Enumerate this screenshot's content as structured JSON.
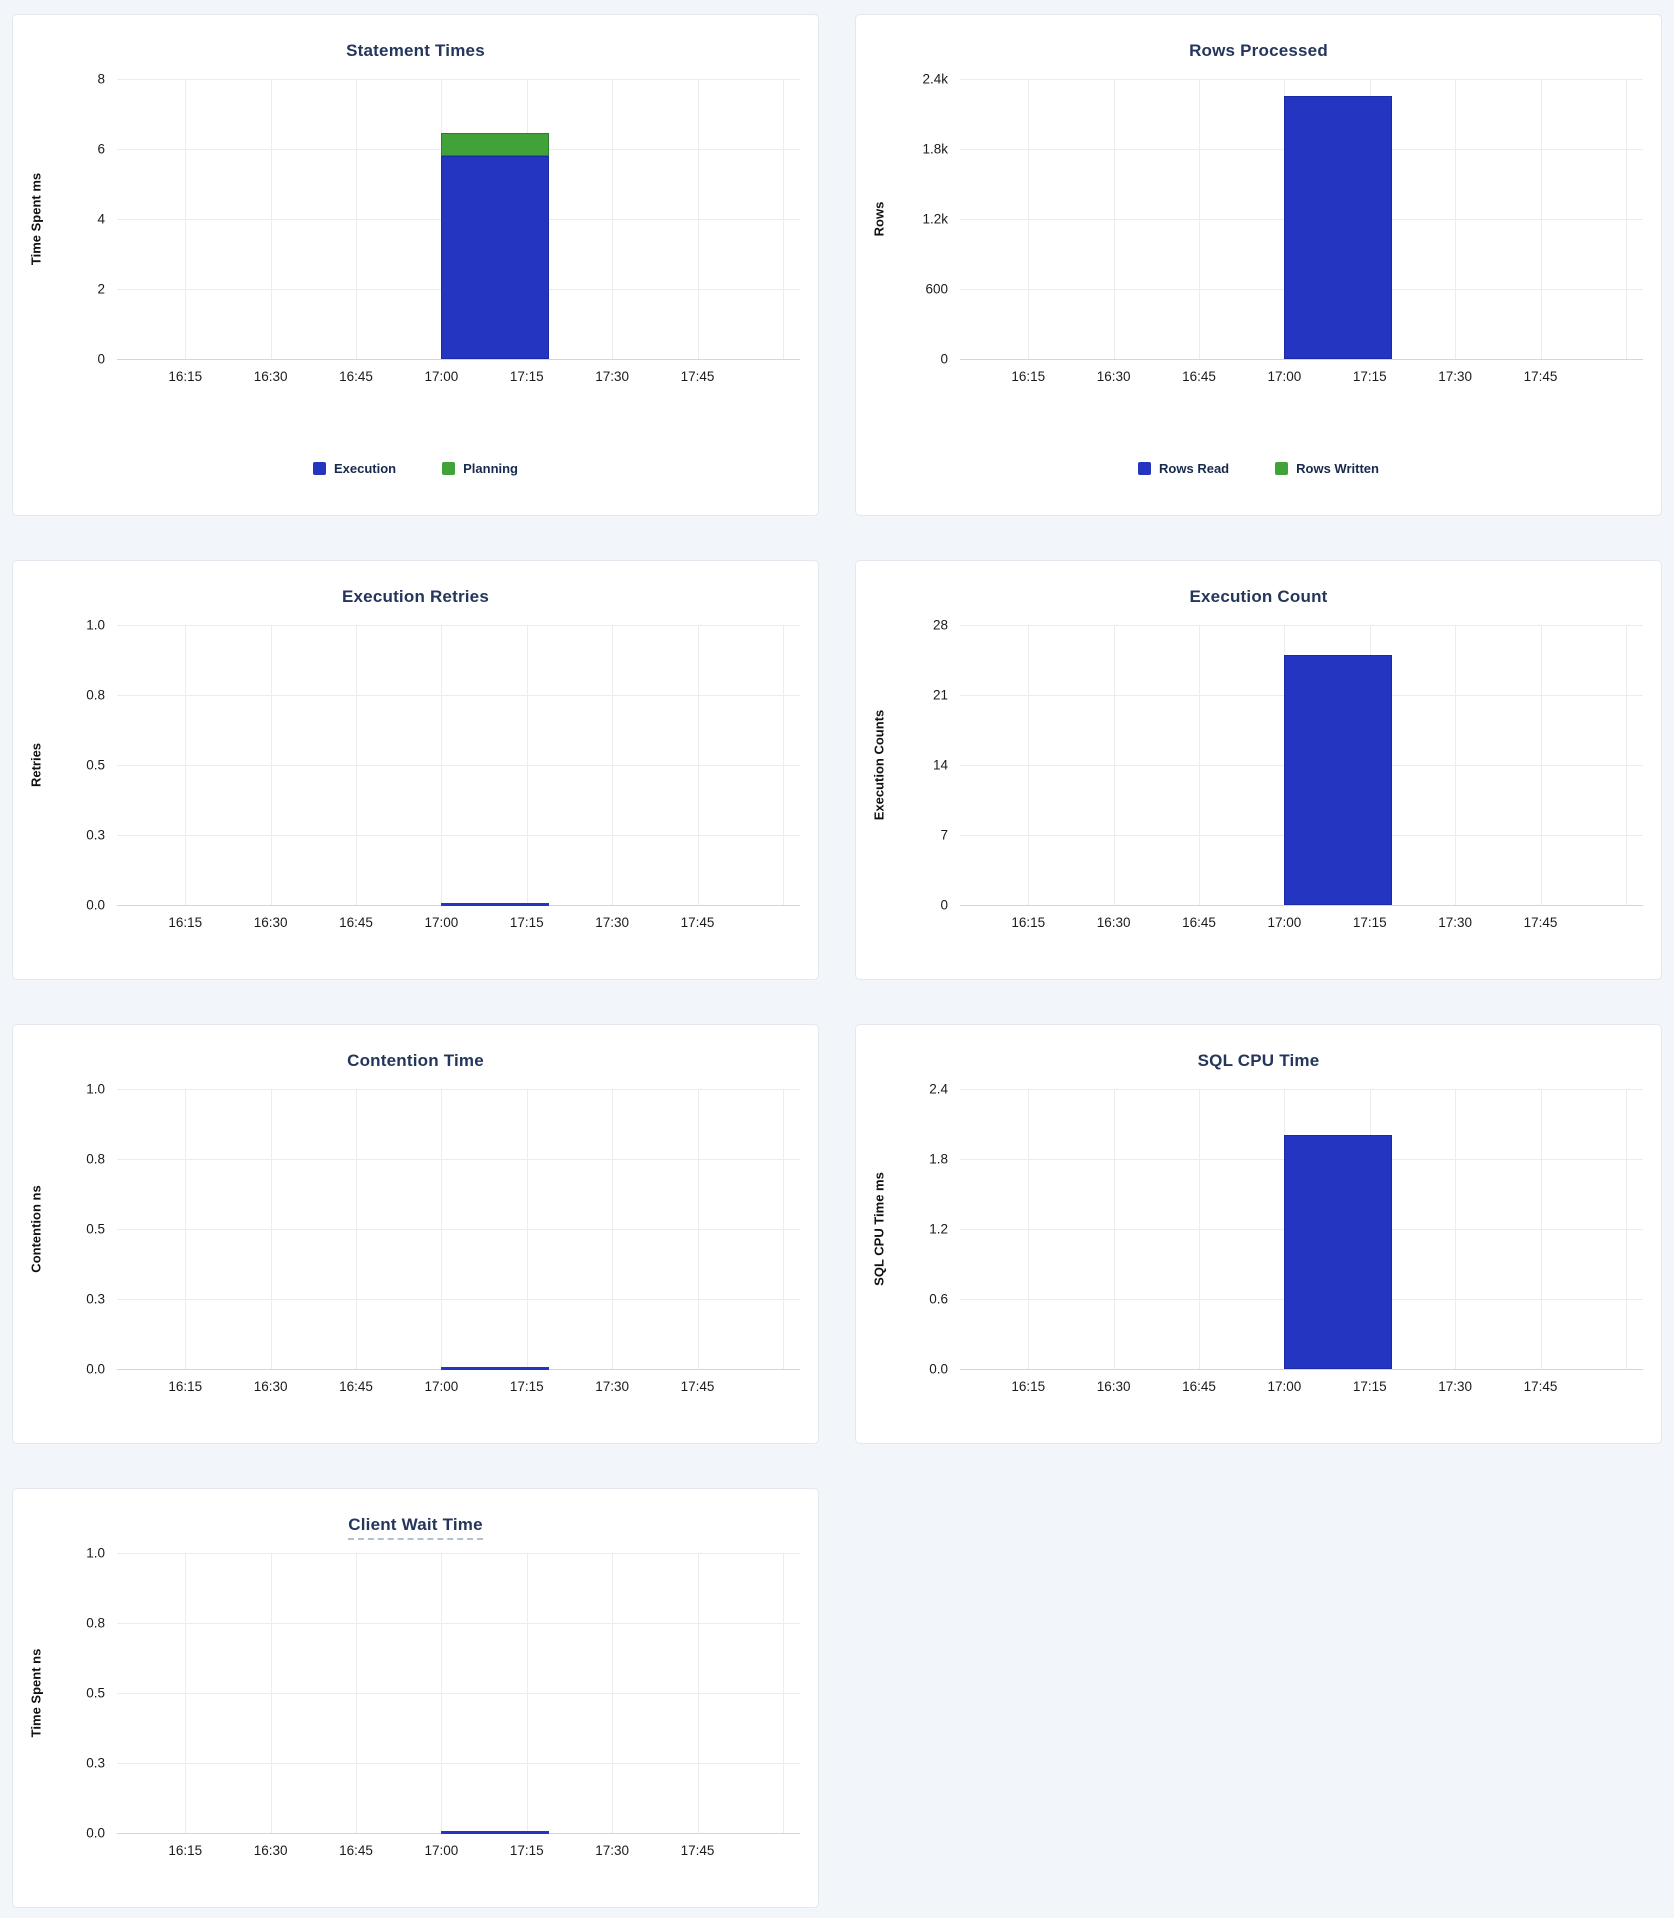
{
  "colors": {
    "bar_blue": "#2435c1",
    "bar_blue_border": "#1b2aa6",
    "bar_green": "#41a23a",
    "bar_green_border": "#27812a",
    "title_navy": "#24365c",
    "legend_text": "#17294d",
    "tick_text": "#1b1b1b",
    "grid_light": "#ececec",
    "axis_bottom_line": "#d3d7dc",
    "page_bg": "#f2f5f9",
    "card_bg": "#ffffff",
    "card_border": "#e3e8ee"
  },
  "x_axis": {
    "labels": [
      "16:15",
      "16:30",
      "16:45",
      "17:00",
      "17:15",
      "17:30",
      "17:45"
    ],
    "label_positions_pct": [
      10,
      22.5,
      35,
      47.5,
      60,
      72.5,
      85
    ],
    "gridline_positions_pct": [
      10,
      22.5,
      35,
      47.5,
      60,
      72.5,
      85,
      97.5
    ],
    "bar_left_pct": 47.5,
    "bar_width_pct": 15.7
  },
  "charts": [
    {
      "id": "statement-times",
      "title": "Statement Times",
      "y_unit": "Time Spent ms",
      "y_ticks": [
        "8",
        "6",
        "4",
        "2",
        "0"
      ],
      "segments": [
        {
          "color": "bar_blue",
          "border": "bar_blue_border",
          "height_pct": 72.5,
          "name": "execution-bar"
        },
        {
          "color": "bar_green",
          "border": "bar_green_border",
          "height_pct": 8.1,
          "name": "planning-bar"
        }
      ],
      "flat_line": false,
      "title_underline": false,
      "legend": [
        {
          "swatch": "bar_blue",
          "label": "Execution"
        },
        {
          "swatch": "bar_green",
          "label": "Planning"
        }
      ]
    },
    {
      "id": "rows-processed",
      "title": "Rows Processed",
      "y_unit": "Rows",
      "y_ticks": [
        "2.4k",
        "1.8k",
        "1.2k",
        "600",
        "0"
      ],
      "segments": [
        {
          "color": "bar_blue",
          "border": "bar_blue_border",
          "height_pct": 93.8,
          "name": "rows-read-bar"
        }
      ],
      "flat_line": false,
      "title_underline": false,
      "legend": [
        {
          "swatch": "bar_blue",
          "label": "Rows Read"
        },
        {
          "swatch": "bar_green",
          "label": "Rows Written"
        }
      ]
    },
    {
      "id": "execution-retries",
      "title": "Execution Retries",
      "y_unit": "Retries",
      "y_ticks": [
        "1.0",
        "0.8",
        "0.5",
        "0.3",
        "0.0"
      ],
      "segments": [],
      "flat_line": true,
      "title_underline": false,
      "legend": null
    },
    {
      "id": "execution-count",
      "title": "Execution Count",
      "y_unit": "Execution Counts",
      "y_ticks": [
        "28",
        "21",
        "14",
        "7",
        "0"
      ],
      "segments": [
        {
          "color": "bar_blue",
          "border": "bar_blue_border",
          "height_pct": 89.3,
          "name": "execution-count-bar"
        }
      ],
      "flat_line": false,
      "title_underline": false,
      "legend": null
    },
    {
      "id": "contention-time",
      "title": "Contention Time",
      "y_unit": "Contention ns",
      "y_ticks": [
        "1.0",
        "0.8",
        "0.5",
        "0.3",
        "0.0"
      ],
      "segments": [],
      "flat_line": true,
      "title_underline": false,
      "legend": null
    },
    {
      "id": "sql-cpu-time",
      "title": "SQL CPU Time",
      "y_unit": "SQL CPU Time ms",
      "y_ticks": [
        "2.4",
        "1.8",
        "1.2",
        "0.6",
        "0.0"
      ],
      "segments": [
        {
          "color": "bar_blue",
          "border": "bar_blue_border",
          "height_pct": 83.6,
          "name": "sql-cpu-bar"
        }
      ],
      "flat_line": false,
      "title_underline": false,
      "legend": null
    },
    {
      "id": "client-wait-time",
      "title": "Client Wait Time",
      "y_unit": "Time Spent ns",
      "y_ticks": [
        "1.0",
        "0.8",
        "0.5",
        "0.3",
        "0.0"
      ],
      "segments": [],
      "flat_line": true,
      "title_underline": true,
      "legend": null
    }
  ],
  "chart_data": [
    {
      "type": "bar",
      "title": "Statement Times",
      "xlabel": "",
      "ylabel": "Time Spent ms",
      "x_ticks": [
        "16:15",
        "16:30",
        "16:45",
        "17:00",
        "17:15",
        "17:30",
        "17:45"
      ],
      "ylim": [
        0,
        8
      ],
      "y_tick_labels": [
        "0",
        "2",
        "4",
        "6",
        "8"
      ],
      "stacked": true,
      "grid": true,
      "legend_position": "bottom",
      "series": [
        {
          "name": "Execution",
          "x": [
            "17:00"
          ],
          "values": [
            5.8
          ]
        },
        {
          "name": "Planning",
          "x": [
            "17:00"
          ],
          "values": [
            0.65
          ]
        }
      ]
    },
    {
      "type": "bar",
      "title": "Rows Processed",
      "xlabel": "",
      "ylabel": "Rows",
      "x_ticks": [
        "16:15",
        "16:30",
        "16:45",
        "17:00",
        "17:15",
        "17:30",
        "17:45"
      ],
      "ylim": [
        0,
        2400
      ],
      "y_tick_labels": [
        "0",
        "600",
        "1.2k",
        "1.8k",
        "2.4k"
      ],
      "stacked": true,
      "grid": true,
      "legend_position": "bottom",
      "series": [
        {
          "name": "Rows Read",
          "x": [
            "17:00"
          ],
          "values": [
            2250
          ]
        },
        {
          "name": "Rows Written",
          "x": [
            "17:00"
          ],
          "values": [
            0
          ]
        }
      ]
    },
    {
      "type": "bar",
      "title": "Execution Retries",
      "xlabel": "",
      "ylabel": "Retries",
      "x_ticks": [
        "16:15",
        "16:30",
        "16:45",
        "17:00",
        "17:15",
        "17:30",
        "17:45"
      ],
      "ylim": [
        0,
        1
      ],
      "y_tick_labels": [
        "0.0",
        "0.3",
        "0.5",
        "0.8",
        "1.0"
      ],
      "grid": true,
      "series": [
        {
          "name": "Retries",
          "x": [
            "17:00"
          ],
          "values": [
            0
          ]
        }
      ]
    },
    {
      "type": "bar",
      "title": "Execution Count",
      "xlabel": "",
      "ylabel": "Execution Counts",
      "x_ticks": [
        "16:15",
        "16:30",
        "16:45",
        "17:00",
        "17:15",
        "17:30",
        "17:45"
      ],
      "ylim": [
        0,
        28
      ],
      "y_tick_labels": [
        "0",
        "7",
        "14",
        "21",
        "28"
      ],
      "grid": true,
      "series": [
        {
          "name": "Execution Count",
          "x": [
            "17:00"
          ],
          "values": [
            25
          ]
        }
      ]
    },
    {
      "type": "bar",
      "title": "Contention Time",
      "xlabel": "",
      "ylabel": "Contention ns",
      "x_ticks": [
        "16:15",
        "16:30",
        "16:45",
        "17:00",
        "17:15",
        "17:30",
        "17:45"
      ],
      "ylim": [
        0,
        1
      ],
      "y_tick_labels": [
        "0.0",
        "0.3",
        "0.5",
        "0.8",
        "1.0"
      ],
      "grid": true,
      "series": [
        {
          "name": "Contention",
          "x": [
            "17:00"
          ],
          "values": [
            0
          ]
        }
      ]
    },
    {
      "type": "bar",
      "title": "SQL CPU Time",
      "xlabel": "",
      "ylabel": "SQL CPU Time ms",
      "x_ticks": [
        "16:15",
        "16:30",
        "16:45",
        "17:00",
        "17:15",
        "17:30",
        "17:45"
      ],
      "ylim": [
        0,
        2.4
      ],
      "y_tick_labels": [
        "0.0",
        "0.6",
        "1.2",
        "1.8",
        "2.4"
      ],
      "grid": true,
      "series": [
        {
          "name": "SQL CPU Time",
          "x": [
            "17:00"
          ],
          "values": [
            2.0
          ]
        }
      ]
    },
    {
      "type": "bar",
      "title": "Client Wait Time",
      "xlabel": "",
      "ylabel": "Time Spent ns",
      "x_ticks": [
        "16:15",
        "16:30",
        "16:45",
        "17:00",
        "17:15",
        "17:30",
        "17:45"
      ],
      "ylim": [
        0,
        1
      ],
      "y_tick_labels": [
        "0.0",
        "0.3",
        "0.5",
        "0.8",
        "1.0"
      ],
      "grid": true,
      "series": [
        {
          "name": "Client Wait",
          "x": [
            "17:00"
          ],
          "values": [
            0
          ]
        }
      ]
    }
  ]
}
